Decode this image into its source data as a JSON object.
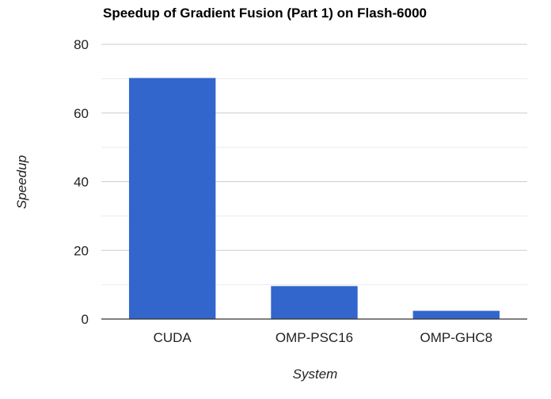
{
  "chart_data": {
    "type": "bar",
    "title": "Speedup of Gradient Fusion (Part 1) on Flash-6000",
    "xlabel": "System",
    "ylabel": "Speedup",
    "categories": [
      "CUDA",
      "OMP-PSC16",
      "OMP-GHC8"
    ],
    "values": [
      70.2,
      9.6,
      2.4
    ],
    "ylim": [
      0,
      80
    ],
    "yticks": [
      0,
      20,
      40,
      60,
      80
    ],
    "minor_gridlines": true,
    "grid": true,
    "legend": "none",
    "colors": {
      "bar": "#3366cc",
      "gridline": "#cccccc",
      "minor_gridline": "#ebebeb",
      "baseline": "#333333"
    }
  }
}
